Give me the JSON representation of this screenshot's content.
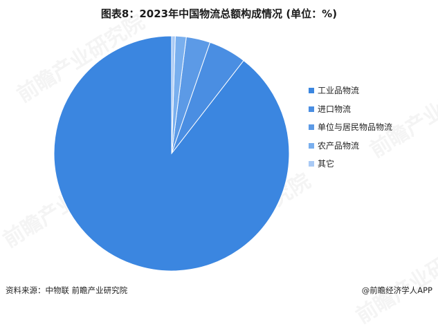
{
  "chart_data": {
    "type": "pie",
    "title": "图表8：2023年中国物流总额构成情况 (单位：%)",
    "categories": [
      "工业品物流",
      "进口物流",
      "单位与居民物品物流",
      "农产品物流",
      "其它"
    ],
    "values": [
      89.6,
      5.2,
      3.3,
      1.5,
      0.5
    ],
    "colors": [
      "#3b86e0",
      "#4a8ee2",
      "#5c9ae6",
      "#79afee",
      "#a9caf5"
    ],
    "legend_position": "right"
  },
  "footer": {
    "source": "资料来源：中物联 前瞻产业研究院",
    "brand": "@前瞻经济学人APP"
  },
  "watermark": {
    "text": "前瞻产业研究院"
  }
}
